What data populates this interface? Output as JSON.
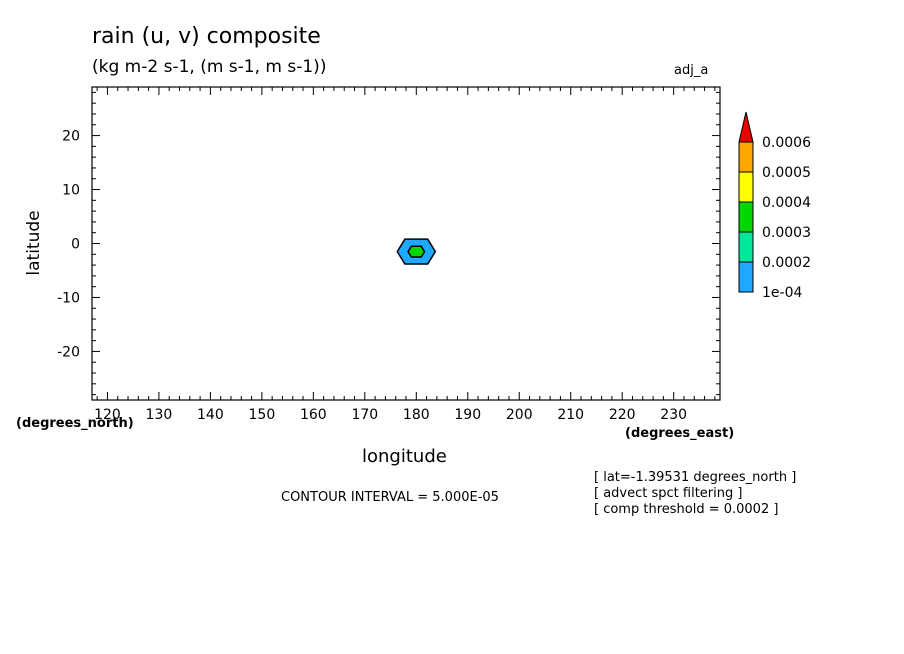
{
  "chart_data": {
    "type": "contour",
    "title": "rain (u, v) composite",
    "subtitle": "(kg m-2 s-1, (m s-1, m s-1))",
    "dataset_label": "adj_a",
    "xlabel": "longitude",
    "ylabel": "latitude",
    "x_units": "(degrees_east)",
    "y_units": "(degrees_north)",
    "xlim": [
      117,
      239
    ],
    "ylim": [
      -29,
      29
    ],
    "x_ticks": [
      120,
      130,
      140,
      150,
      160,
      170,
      180,
      190,
      200,
      210,
      220,
      230
    ],
    "y_ticks": [
      20,
      10,
      0,
      -10,
      -20
    ],
    "contour_interval": "CONTOUR INTERVAL = 5.000E-05",
    "notes": [
      "[ lat=-1.39531 degrees_north ]",
      "[ advect spct filtering ]",
      "[ comp threshold = 0.0002 ]"
    ],
    "colorbar": {
      "labels": [
        "0.0006",
        "0.0005",
        "0.0004",
        "0.0003",
        "0.0002",
        "1e-04"
      ],
      "colors": [
        "#e60000",
        "#ffa500",
        "#ffff00",
        "#00d800",
        "#00e89a",
        "#1ea8ff"
      ]
    },
    "features": [
      {
        "name": "outer contour 1e-04",
        "center": [
          180,
          -1.5
        ],
        "half_width": 3.7,
        "half_height": 2.3,
        "fill": "#1ea8ff"
      },
      {
        "name": "inner contour 0.0002",
        "center": [
          180,
          -1.5
        ],
        "half_width": 1.6,
        "half_height": 1.0,
        "fill": "#00d800"
      }
    ]
  }
}
